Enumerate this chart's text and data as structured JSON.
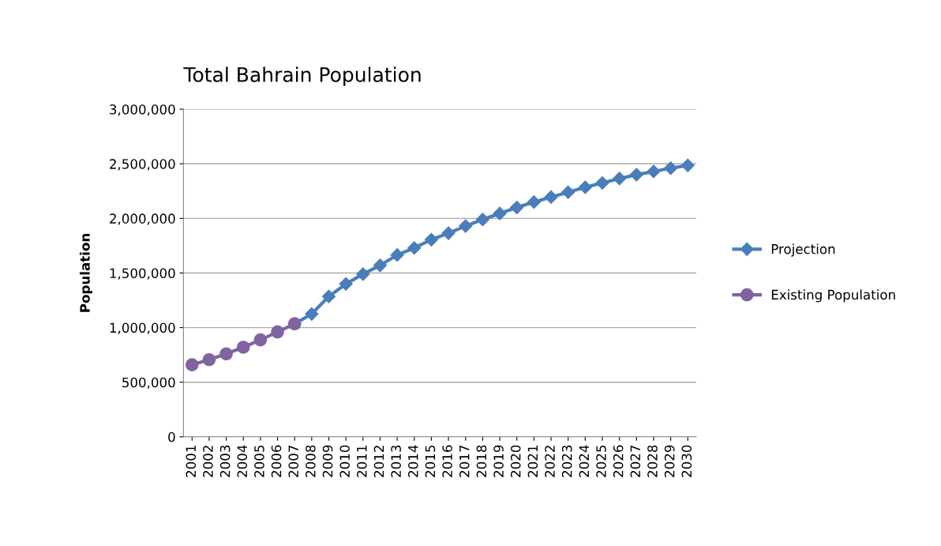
{
  "chart_data": {
    "type": "line",
    "title": "Total Bahrain Population",
    "ylabel": "Population",
    "categories": [
      "2001",
      "2002",
      "2003",
      "2004",
      "2005",
      "2006",
      "2007",
      "2008",
      "2009",
      "2010",
      "2011",
      "2012",
      "2013",
      "2014",
      "2015",
      "2016",
      "2017",
      "2018",
      "2019",
      "2020",
      "2021",
      "2022",
      "2023",
      "2024",
      "2025",
      "2026",
      "2027",
      "2028",
      "2029",
      "2030"
    ],
    "series": [
      {
        "name": "Projection",
        "color": "#4a7ebb",
        "marker": "diamond",
        "values": [
          null,
          null,
          null,
          null,
          null,
          null,
          1035000,
          1125000,
          1285000,
          1400000,
          1490000,
          1570000,
          1665000,
          1730000,
          1805000,
          1865000,
          1930000,
          1990000,
          2045000,
          2100000,
          2150000,
          2195000,
          2240000,
          2285000,
          2325000,
          2365000,
          2400000,
          2430000,
          2460000,
          2485000
        ]
      },
      {
        "name": "Existing Population",
        "color": "#8064a2",
        "marker": "circle",
        "values": [
          660000,
          706000,
          760000,
          820000,
          888000,
          960000,
          1035000,
          null,
          null,
          null,
          null,
          null,
          null,
          null,
          null,
          null,
          null,
          null,
          null,
          null,
          null,
          null,
          null,
          null,
          null,
          null,
          null,
          null,
          null,
          null
        ]
      }
    ],
    "ylim": [
      0,
      3000000
    ],
    "yticks": [
      {
        "value": 0,
        "label": "0"
      },
      {
        "value": 500000,
        "label": "500,000"
      },
      {
        "value": 1000000,
        "label": "1,000,000"
      },
      {
        "value": 1500000,
        "label": "1,500,000"
      },
      {
        "value": 2000000,
        "label": "2,000,000"
      },
      {
        "value": 2500000,
        "label": "2,500,000"
      },
      {
        "value": 3000000,
        "label": "3,000,000"
      }
    ],
    "grid": "y",
    "legend": "right",
    "line_style": "solid"
  }
}
